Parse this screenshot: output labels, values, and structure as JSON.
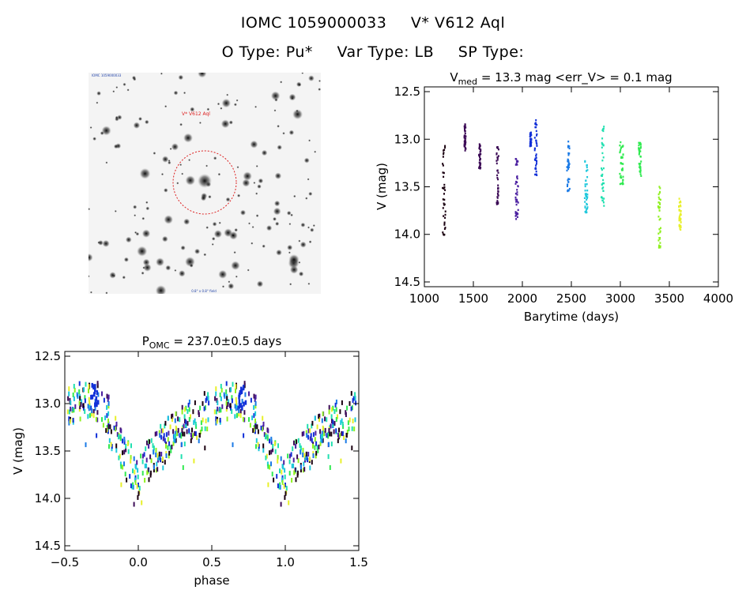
{
  "header": {
    "object_id": "IOMC 1059000033",
    "star_name": "V* V612 Aql",
    "o_type": "O Type: Pu*",
    "var_type": "Var Type: LB",
    "sp_type": "SP Type:"
  },
  "image_panel": {
    "target_label": "V* V612 Aql",
    "corner_label_top": "IOMC 1059000033",
    "corner_label_bottom": "0.8° x 0.8° field"
  },
  "colors": {
    "marker_circle": "#dd2222",
    "palette": [
      "#1a0010",
      "#3c0b56",
      "#4a1ea0",
      "#1230d8",
      "#1a7ae6",
      "#1fc8dc",
      "#20e0b0",
      "#30ea50",
      "#90f020",
      "#e8f02a"
    ]
  },
  "chart_data": [
    {
      "type": "scatter",
      "title": "V_med = 13.3 mag <err_V> = 0.1 mag",
      "title_parts": {
        "v": "V",
        "sub": "med",
        "rest": " = 13.3 mag <err_V> = 0.1 mag"
      },
      "xlabel": "Barytime (days)",
      "ylabel": "V (mag)",
      "xlim": [
        1000,
        4000
      ],
      "ylim": [
        14.55,
        12.45
      ],
      "xticks": [
        1000,
        1500,
        2000,
        2500,
        3000,
        3500,
        4000
      ],
      "yticks": [
        12.5,
        13.0,
        13.5,
        14.0,
        14.5
      ],
      "ytick_labels": [
        "12.5",
        "13.0",
        "13.5",
        "14.0",
        "14.5"
      ],
      "groups": [
        {
          "x": 1190,
          "w": 60,
          "y0": 13.05,
          "y1": 14.02,
          "c": 0
        },
        {
          "x": 1410,
          "w": 30,
          "y0": 12.82,
          "y1": 13.12,
          "c": 1
        },
        {
          "x": 1560,
          "w": 35,
          "y0": 13.05,
          "y1": 13.32,
          "c": 1
        },
        {
          "x": 1740,
          "w": 45,
          "y0": 13.08,
          "y1": 13.7,
          "c": 1
        },
        {
          "x": 1935,
          "w": 55,
          "y0": 13.2,
          "y1": 13.85,
          "c": 2
        },
        {
          "x": 2080,
          "w": 30,
          "y0": 12.93,
          "y1": 13.08,
          "c": 3
        },
        {
          "x": 2130,
          "w": 45,
          "y0": 12.8,
          "y1": 13.4,
          "c": 3
        },
        {
          "x": 2460,
          "w": 55,
          "y0": 13.0,
          "y1": 13.55,
          "c": 4
        },
        {
          "x": 2640,
          "w": 60,
          "y0": 13.22,
          "y1": 13.82,
          "c": 5
        },
        {
          "x": 2810,
          "w": 55,
          "y0": 12.86,
          "y1": 13.7,
          "c": 6
        },
        {
          "x": 3000,
          "w": 70,
          "y0": 13.02,
          "y1": 13.48,
          "c": 7
        },
        {
          "x": 3190,
          "w": 55,
          "y0": 13.02,
          "y1": 13.4,
          "c": 7
        },
        {
          "x": 3390,
          "w": 50,
          "y0": 13.5,
          "y1": 14.15,
          "c": 8
        },
        {
          "x": 3600,
          "w": 45,
          "y0": 13.58,
          "y1": 13.98,
          "c": 9
        }
      ]
    },
    {
      "type": "scatter",
      "title": "P_OMC = 237.0±0.5 days",
      "title_parts": {
        "p": "P",
        "sub": "OMC",
        "rest": " = 237.0±0.5 days"
      },
      "xlabel": "phase",
      "ylabel": "V (mag)",
      "xlim": [
        -0.5,
        1.5
      ],
      "ylim": [
        14.55,
        12.45
      ],
      "xticks": [
        -0.5,
        0.0,
        0.5,
        1.0,
        1.5
      ],
      "xtick_labels": [
        "−0.5",
        "0.0",
        "0.5",
        "1.0",
        "1.5"
      ],
      "yticks": [
        12.5,
        13.0,
        13.5,
        14.0,
        14.5
      ],
      "ytick_labels": [
        "12.5",
        "13.0",
        "13.5",
        "14.0",
        "14.5"
      ],
      "curve": [
        [
          -0.5,
          13.05
        ],
        [
          -0.4,
          13.0
        ],
        [
          -0.3,
          12.95
        ],
        [
          -0.2,
          13.15
        ],
        [
          -0.1,
          13.55
        ],
        [
          0.0,
          13.75
        ],
        [
          0.1,
          13.55
        ],
        [
          0.2,
          13.35
        ],
        [
          0.3,
          13.25
        ],
        [
          0.4,
          13.15
        ],
        [
          0.5,
          13.05
        ]
      ],
      "curve_scatter": 0.22,
      "bright_bursts": [
        {
          "phase": -0.3,
          "y0": 12.8,
          "y1": 13.05,
          "c": 3
        },
        {
          "phase": 0.7,
          "y0": 12.8,
          "y1": 13.05,
          "c": 3
        }
      ]
    }
  ]
}
